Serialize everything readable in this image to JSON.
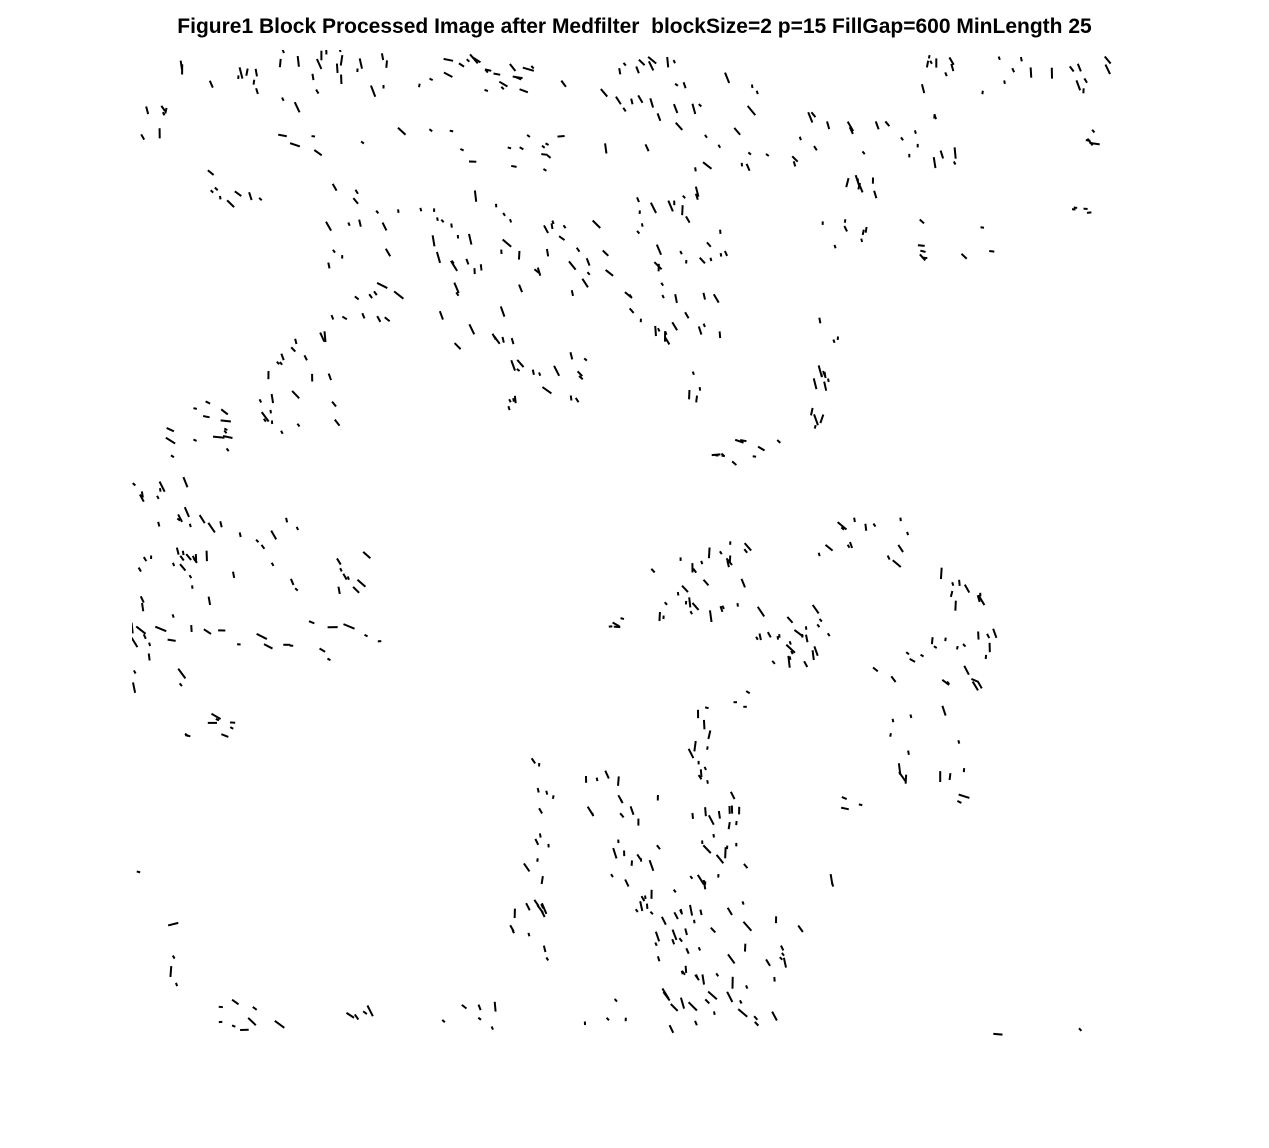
{
  "figure": {
    "title": "Figure1 Block Processed Image after Medfilter  blockSize=2 p=15 FillGap=600 MinLength 25"
  },
  "image": {
    "description_type": "binary edge map",
    "background_color": "#ffffff",
    "foreground_color": "#000000"
  }
}
